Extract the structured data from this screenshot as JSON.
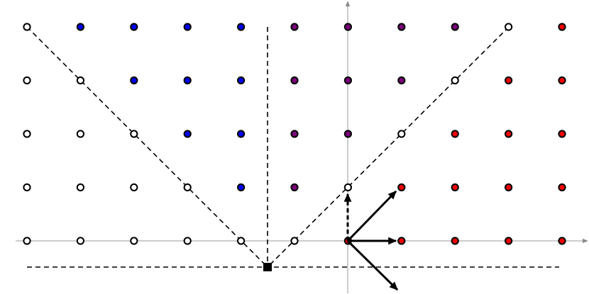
{
  "lattice": {
    "palette": {
      "w": "#ffffff",
      "b": "#0000ee",
      "p": "#7a007a",
      "r": "#ee0000"
    },
    "rows": [
      "wbbbbppppwr",
      "wwbbbpppwrr",
      "wwwbbppwrrr",
      "wwwwbpwrrrr",
      "wwwwwwrrrrr"
    ]
  }
}
